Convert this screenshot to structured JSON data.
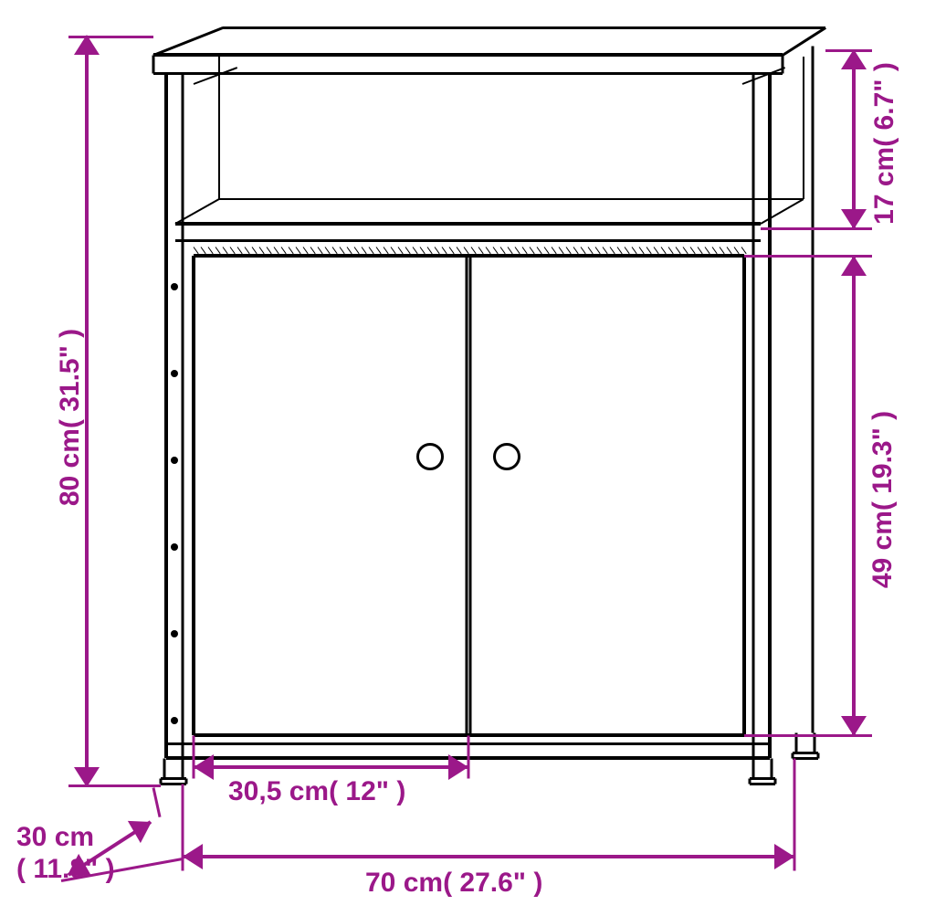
{
  "dimensions": {
    "height_total": "80 cm( 31.5\" )",
    "depth": "30 cm( 11.8\" )",
    "width": "70 cm( 27.6\" )",
    "door_width": "30,5 cm( 12\" )",
    "shelf_height": "17 cm( 6.7\" )",
    "door_height": "49 cm( 19.3\" )"
  },
  "colors": {
    "dimension": "#9b1889",
    "outline": "#000000",
    "background": "#ffffff"
  },
  "font_size": 30,
  "line_thin": 2,
  "line_thick": 4,
  "arrow_size": 14
}
